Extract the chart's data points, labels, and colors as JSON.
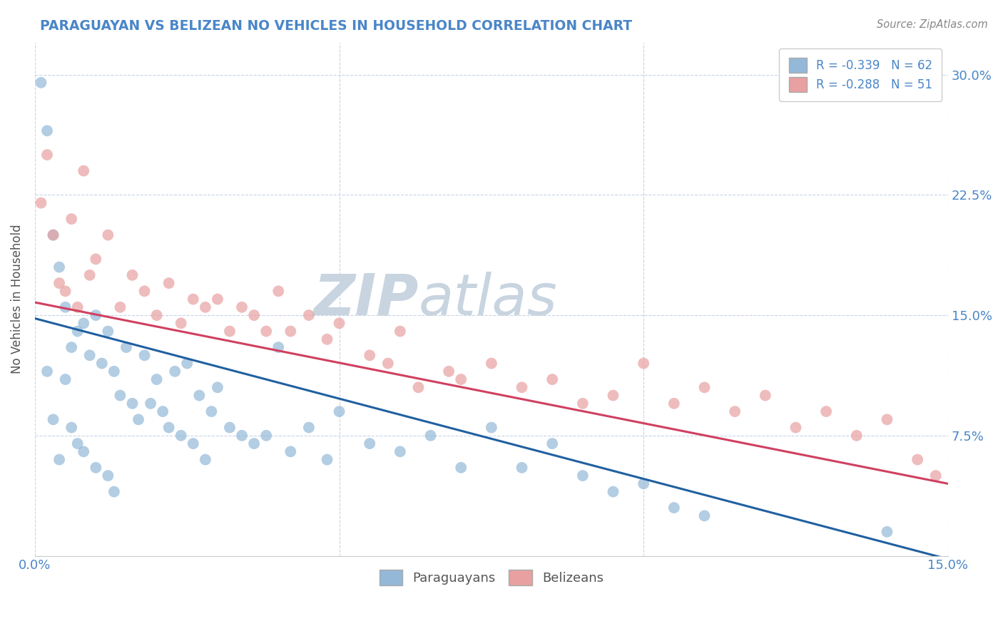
{
  "title": "PARAGUAYAN VS BELIZEAN NO VEHICLES IN HOUSEHOLD CORRELATION CHART",
  "source_text": "Source: ZipAtlas.com",
  "ylabel": "No Vehicles in Household",
  "xlim": [
    0.0,
    0.15
  ],
  "ylim": [
    0.0,
    0.32
  ],
  "xtick_vals": [
    0.0,
    0.05,
    0.1,
    0.15
  ],
  "xtick_labels": [
    "0.0%",
    "",
    "",
    "15.0%"
  ],
  "ytick_vals": [
    0.0,
    0.075,
    0.15,
    0.225,
    0.3
  ],
  "ytick_labels": [
    "",
    "7.5%",
    "15.0%",
    "22.5%",
    "30.0%"
  ],
  "blue_R": -0.339,
  "blue_N": 62,
  "pink_R": -0.288,
  "pink_N": 51,
  "blue_color": "#93b8d8",
  "pink_color": "#e8a0a0",
  "blue_line_color": "#2060a0",
  "pink_line_color": "#d04060",
  "watermark_zip": "ZIP",
  "watermark_atlas": "atlas",
  "watermark_color_zip": "#c8d4e0",
  "watermark_color_atlas": "#c8d4e0",
  "legend_label_blue": "Paraguayans",
  "legend_label_pink": "Belizeans",
  "background_color": "#ffffff",
  "grid_color": "#c8d4e8",
  "title_color": "#4a86c8",
  "blue_line_x0": 0.0,
  "blue_line_y0": 0.148,
  "blue_line_x1": 0.15,
  "blue_line_y1": -0.002,
  "pink_line_x0": 0.0,
  "pink_line_y0": 0.158,
  "pink_line_x1": 0.15,
  "pink_line_y1": 0.045,
  "blue_scatter_x": [
    0.001,
    0.002,
    0.002,
    0.003,
    0.003,
    0.004,
    0.004,
    0.005,
    0.005,
    0.006,
    0.006,
    0.007,
    0.007,
    0.008,
    0.008,
    0.009,
    0.01,
    0.01,
    0.011,
    0.012,
    0.012,
    0.013,
    0.013,
    0.014,
    0.015,
    0.016,
    0.017,
    0.018,
    0.019,
    0.02,
    0.021,
    0.022,
    0.023,
    0.024,
    0.025,
    0.026,
    0.027,
    0.028,
    0.029,
    0.03,
    0.032,
    0.034,
    0.036,
    0.038,
    0.04,
    0.042,
    0.045,
    0.048,
    0.05,
    0.055,
    0.06,
    0.065,
    0.07,
    0.075,
    0.08,
    0.085,
    0.09,
    0.095,
    0.1,
    0.105,
    0.11,
    0.14
  ],
  "blue_scatter_y": [
    0.295,
    0.265,
    0.115,
    0.2,
    0.085,
    0.18,
    0.06,
    0.155,
    0.11,
    0.13,
    0.08,
    0.14,
    0.07,
    0.145,
    0.065,
    0.125,
    0.15,
    0.055,
    0.12,
    0.14,
    0.05,
    0.115,
    0.04,
    0.1,
    0.13,
    0.095,
    0.085,
    0.125,
    0.095,
    0.11,
    0.09,
    0.08,
    0.115,
    0.075,
    0.12,
    0.07,
    0.1,
    0.06,
    0.09,
    0.105,
    0.08,
    0.075,
    0.07,
    0.075,
    0.13,
    0.065,
    0.08,
    0.06,
    0.09,
    0.07,
    0.065,
    0.075,
    0.055,
    0.08,
    0.055,
    0.07,
    0.05,
    0.04,
    0.045,
    0.03,
    0.025,
    0.015
  ],
  "pink_scatter_x": [
    0.001,
    0.002,
    0.003,
    0.004,
    0.005,
    0.006,
    0.007,
    0.008,
    0.009,
    0.01,
    0.012,
    0.014,
    0.016,
    0.018,
    0.02,
    0.022,
    0.024,
    0.026,
    0.028,
    0.03,
    0.032,
    0.034,
    0.036,
    0.038,
    0.04,
    0.042,
    0.045,
    0.048,
    0.05,
    0.055,
    0.058,
    0.06,
    0.063,
    0.068,
    0.07,
    0.075,
    0.08,
    0.085,
    0.09,
    0.095,
    0.1,
    0.105,
    0.11,
    0.115,
    0.12,
    0.125,
    0.13,
    0.135,
    0.14,
    0.145,
    0.148
  ],
  "pink_scatter_y": [
    0.22,
    0.25,
    0.2,
    0.17,
    0.165,
    0.21,
    0.155,
    0.24,
    0.175,
    0.185,
    0.2,
    0.155,
    0.175,
    0.165,
    0.15,
    0.17,
    0.145,
    0.16,
    0.155,
    0.16,
    0.14,
    0.155,
    0.15,
    0.14,
    0.165,
    0.14,
    0.15,
    0.135,
    0.145,
    0.125,
    0.12,
    0.14,
    0.105,
    0.115,
    0.11,
    0.12,
    0.105,
    0.11,
    0.095,
    0.1,
    0.12,
    0.095,
    0.105,
    0.09,
    0.1,
    0.08,
    0.09,
    0.075,
    0.085,
    0.06,
    0.05
  ]
}
